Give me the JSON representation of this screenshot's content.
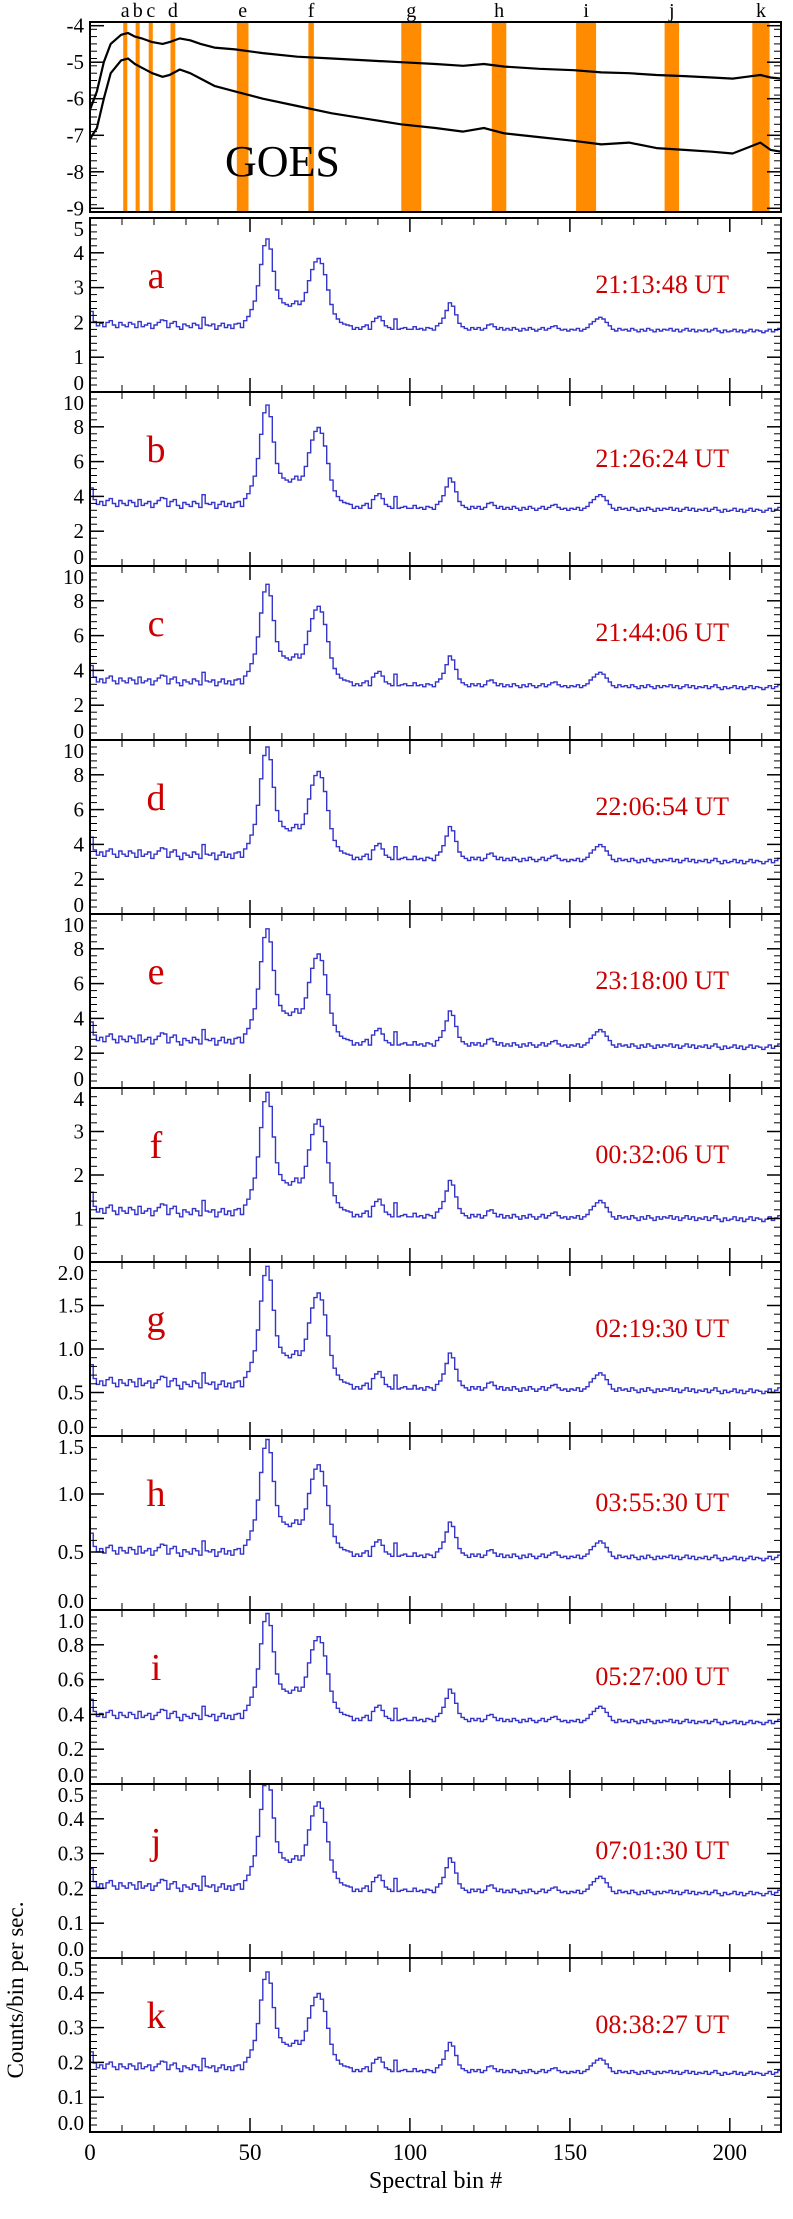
{
  "colors": {
    "spectrum": "#3535cc",
    "band": "#ff8c00",
    "annotation": "#cc0000",
    "axis": "#000000",
    "background": "#ffffff"
  },
  "chart_data": [
    {
      "type": "line",
      "title": "GOES",
      "ylim": [
        -9.1,
        -3.9
      ],
      "yticks": [
        -4,
        -5,
        -6,
        -7,
        -8,
        -9
      ],
      "ytick_labels": [
        "-4",
        "-5",
        "-6",
        "-7",
        "-8",
        "-9"
      ],
      "bands": [
        {
          "label": "a",
          "x": 0.051,
          "w": 0.006
        },
        {
          "label": "b",
          "x": 0.069,
          "w": 0.006
        },
        {
          "label": "c",
          "x": 0.088,
          "w": 0.006
        },
        {
          "label": "d",
          "x": 0.12,
          "w": 0.007
        },
        {
          "label": "e",
          "x": 0.221,
          "w": 0.017
        },
        {
          "label": "f",
          "x": 0.32,
          "w": 0.008
        },
        {
          "label": "g",
          "x": 0.465,
          "w": 0.029
        },
        {
          "label": "h",
          "x": 0.592,
          "w": 0.021
        },
        {
          "label": "i",
          "x": 0.718,
          "w": 0.029
        },
        {
          "label": "j",
          "x": 0.842,
          "w": 0.021
        },
        {
          "label": "k",
          "x": 0.971,
          "w": 0.025
        }
      ],
      "series": [
        {
          "name": "upper-curve",
          "points": [
            [
              0.0,
              -6.3
            ],
            [
              0.01,
              -5.8
            ],
            [
              0.02,
              -5.0
            ],
            [
              0.03,
              -4.5
            ],
            [
              0.045,
              -4.25
            ],
            [
              0.055,
              -4.2
            ],
            [
              0.065,
              -4.3
            ],
            [
              0.075,
              -4.35
            ],
            [
              0.09,
              -4.45
            ],
            [
              0.105,
              -4.5
            ],
            [
              0.115,
              -4.45
            ],
            [
              0.13,
              -4.35
            ],
            [
              0.145,
              -4.4
            ],
            [
              0.16,
              -4.5
            ],
            [
              0.18,
              -4.6
            ],
            [
              0.21,
              -4.65
            ],
            [
              0.25,
              -4.75
            ],
            [
              0.3,
              -4.85
            ],
            [
              0.35,
              -4.9
            ],
            [
              0.4,
              -4.95
            ],
            [
              0.45,
              -5.0
            ],
            [
              0.5,
              -5.05
            ],
            [
              0.54,
              -5.1
            ],
            [
              0.57,
              -5.05
            ],
            [
              0.6,
              -5.12
            ],
            [
              0.65,
              -5.18
            ],
            [
              0.7,
              -5.22
            ],
            [
              0.74,
              -5.28
            ],
            [
              0.78,
              -5.3
            ],
            [
              0.82,
              -5.35
            ],
            [
              0.86,
              -5.38
            ],
            [
              0.9,
              -5.42
            ],
            [
              0.93,
              -5.45
            ],
            [
              0.95,
              -5.4
            ],
            [
              0.97,
              -5.35
            ],
            [
              0.985,
              -5.42
            ],
            [
              1.0,
              -5.45
            ]
          ]
        },
        {
          "name": "lower-curve",
          "points": [
            [
              0.0,
              -7.1
            ],
            [
              0.01,
              -6.8
            ],
            [
              0.02,
              -6.0
            ],
            [
              0.03,
              -5.3
            ],
            [
              0.045,
              -4.95
            ],
            [
              0.055,
              -4.9
            ],
            [
              0.065,
              -5.05
            ],
            [
              0.075,
              -5.15
            ],
            [
              0.09,
              -5.3
            ],
            [
              0.105,
              -5.4
            ],
            [
              0.115,
              -5.35
            ],
            [
              0.13,
              -5.2
            ],
            [
              0.145,
              -5.3
            ],
            [
              0.16,
              -5.45
            ],
            [
              0.18,
              -5.65
            ],
            [
              0.21,
              -5.8
            ],
            [
              0.25,
              -6.0
            ],
            [
              0.3,
              -6.2
            ],
            [
              0.35,
              -6.4
            ],
            [
              0.4,
              -6.55
            ],
            [
              0.45,
              -6.7
            ],
            [
              0.5,
              -6.8
            ],
            [
              0.54,
              -6.9
            ],
            [
              0.57,
              -6.8
            ],
            [
              0.6,
              -6.95
            ],
            [
              0.65,
              -7.05
            ],
            [
              0.7,
              -7.15
            ],
            [
              0.74,
              -7.25
            ],
            [
              0.78,
              -7.2
            ],
            [
              0.82,
              -7.35
            ],
            [
              0.86,
              -7.4
            ],
            [
              0.9,
              -7.45
            ],
            [
              0.93,
              -7.5
            ],
            [
              0.95,
              -7.35
            ],
            [
              0.97,
              -7.2
            ],
            [
              0.985,
              -7.4
            ],
            [
              1.0,
              -7.45
            ]
          ]
        }
      ]
    },
    {
      "type": "bar",
      "xlabel": "Spectral bin #",
      "ylabel": "Counts/bin per sec.",
      "xlim": [
        0,
        216
      ],
      "x_major_ticks": [
        0,
        50,
        100,
        150,
        200
      ],
      "x_tick_labels": [
        "0",
        "50",
        "100",
        "150",
        "200"
      ],
      "x_minor_step": 10,
      "note": "panel counts value at bin = base + amp * shape[bin]",
      "shape": [
        0.15,
        0.03,
        -0.02,
        0.01,
        -0.03,
        0.02,
        0.04,
        -0.01,
        -0.04,
        0.02,
        -0.01,
        -0.03,
        0.02,
        0.0,
        -0.04,
        0.03,
        -0.03,
        -0.01,
        0.01,
        -0.05,
        -0.01,
        0.02,
        0.05,
        0.04,
        -0.04,
        0.01,
        0.03,
        -0.03,
        -0.06,
        0.0,
        -0.02,
        -0.04,
        0.01,
        -0.01,
        -0.05,
        0.08,
        -0.01,
        -0.02,
        0.0,
        -0.06,
        -0.02,
        0.01,
        -0.04,
        -0.01,
        -0.05,
        0.0,
        0.01,
        -0.04,
        0.04,
        0.09,
        0.17,
        0.27,
        0.45,
        0.7,
        0.92,
        1.0,
        0.88,
        0.62,
        0.4,
        0.3,
        0.25,
        0.23,
        0.21,
        0.24,
        0.27,
        0.23,
        0.27,
        0.37,
        0.51,
        0.64,
        0.73,
        0.77,
        0.71,
        0.58,
        0.4,
        0.23,
        0.12,
        0.06,
        0.02,
        0.0,
        -0.01,
        -0.02,
        -0.06,
        -0.04,
        -0.06,
        -0.03,
        -0.01,
        -0.06,
        0.03,
        0.07,
        0.09,
        0.04,
        -0.02,
        -0.04,
        -0.06,
        0.06,
        -0.06,
        -0.05,
        -0.04,
        -0.06,
        -0.06,
        -0.03,
        -0.06,
        -0.05,
        -0.07,
        -0.04,
        -0.05,
        -0.07,
        -0.02,
        0.01,
        0.07,
        0.16,
        0.25,
        0.21,
        0.11,
        0.01,
        -0.03,
        -0.05,
        -0.07,
        -0.04,
        -0.06,
        -0.04,
        -0.07,
        -0.05,
        -0.01,
        0.0,
        -0.03,
        -0.06,
        -0.04,
        -0.07,
        -0.05,
        -0.07,
        -0.04,
        -0.06,
        -0.08,
        -0.05,
        -0.07,
        -0.04,
        -0.06,
        -0.08,
        -0.06,
        -0.04,
        -0.07,
        -0.05,
        -0.03,
        -0.02,
        -0.05,
        -0.07,
        -0.06,
        -0.08,
        -0.06,
        -0.07,
        -0.05,
        -0.08,
        -0.06,
        -0.04,
        0.0,
        0.03,
        0.06,
        0.08,
        0.06,
        0.02,
        -0.02,
        -0.06,
        -0.08,
        -0.05,
        -0.07,
        -0.06,
        -0.08,
        -0.05,
        -0.07,
        -0.09,
        -0.06,
        -0.08,
        -0.05,
        -0.07,
        -0.09,
        -0.06,
        -0.08,
        -0.06,
        -0.07,
        -0.05,
        -0.08,
        -0.06,
        -0.09,
        -0.07,
        -0.05,
        -0.08,
        -0.06,
        -0.09,
        -0.07,
        -0.08,
        -0.06,
        -0.09,
        -0.07,
        -0.05,
        -0.08,
        -0.1,
        -0.07,
        -0.09,
        -0.08,
        -0.06,
        -0.09,
        -0.07,
        -0.1,
        -0.08,
        -0.06,
        -0.09,
        -0.07,
        -0.08,
        -0.1,
        -0.08,
        -0.06,
        -0.09,
        -0.07,
        -0.05
      ],
      "panels": [
        {
          "label": "a",
          "time": "21:13:48 UT",
          "ylim": [
            0,
            5
          ],
          "yticks": [
            "0",
            "1",
            "2",
            "3",
            "4",
            "5"
          ],
          "base": 1.95,
          "amp": 2.45
        },
        {
          "label": "b",
          "time": "21:26:24 UT",
          "ylim": [
            0,
            10
          ],
          "yticks": [
            "0",
            "2",
            "4",
            "6",
            "8",
            "10"
          ],
          "base": 3.65,
          "amp": 5.6
        },
        {
          "label": "c",
          "time": "21:44:06 UT",
          "ylim": [
            0,
            10
          ],
          "yticks": [
            "0",
            "2",
            "4",
            "6",
            "8",
            "10"
          ],
          "base": 3.45,
          "amp": 5.5
        },
        {
          "label": "d",
          "time": "22:06:54 UT",
          "ylim": [
            0,
            10
          ],
          "yticks": [
            "0",
            "2",
            "4",
            "6",
            "8",
            "10"
          ],
          "base": 3.5,
          "amp": 6.1
        },
        {
          "label": "e",
          "time": "23:18:00 UT",
          "ylim": [
            0,
            10
          ],
          "yticks": [
            "0",
            "2",
            "4",
            "6",
            "8",
            "10"
          ],
          "base": 2.85,
          "amp": 6.3
        },
        {
          "label": "f",
          "time": "00:32:06 UT",
          "ylim": [
            0,
            4
          ],
          "yticks": [
            "0",
            "1",
            "2",
            "3",
            "4"
          ],
          "base": 1.2,
          "amp": 2.7
        },
        {
          "label": "g",
          "time": "02:19:30 UT",
          "ylim": [
            0,
            2
          ],
          "yticks": [
            "0.0",
            "0.5",
            "1.0",
            "1.5",
            "2.0"
          ],
          "base": 0.62,
          "amp": 1.33
        },
        {
          "label": "h",
          "time": "03:55:30 UT",
          "ylim": [
            0,
            1.5
          ],
          "yticks": [
            "0.0",
            "0.5",
            "1.0",
            "1.5"
          ],
          "base": 0.52,
          "amp": 0.95
        },
        {
          "label": "i",
          "time": "05:27:00 UT",
          "ylim": [
            0,
            1
          ],
          "yticks": [
            "0.0",
            "0.2",
            "0.4",
            "0.6",
            "0.8",
            "1.0"
          ],
          "base": 0.4,
          "amp": 0.58
        },
        {
          "label": "j",
          "time": "07:01:30 UT",
          "ylim": [
            0,
            0.5
          ],
          "yticks": [
            "0.0",
            "0.1",
            "0.2",
            "0.3",
            "0.4",
            "0.5"
          ],
          "base": 0.21,
          "amp": 0.31
        },
        {
          "label": "k",
          "time": "08:38:27 UT",
          "ylim": [
            0,
            0.5
          ],
          "yticks": [
            "0.0",
            "0.1",
            "0.2",
            "0.3",
            "0.4",
            "0.5"
          ],
          "base": 0.19,
          "amp": 0.27
        }
      ]
    }
  ]
}
